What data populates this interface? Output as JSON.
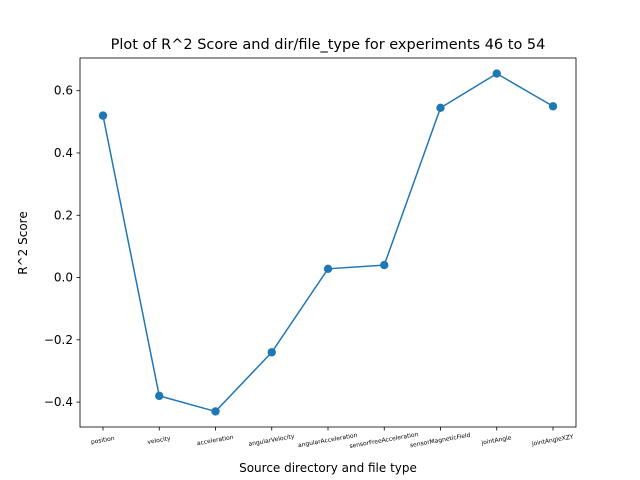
{
  "chart_data": {
    "type": "line",
    "title": "Plot of R^2 Score and dir/file_type for experiments 46 to 54",
    "xlabel": "Source directory and file type",
    "ylabel": "R^2 Score",
    "categories": [
      "position",
      "velocity",
      "acceleration",
      "angularVelocity",
      "angularAcceleration",
      "sensorFreeAcceleration",
      "sensorMagneticField",
      "jointAngle",
      "jointAngleXZY"
    ],
    "values": [
      0.52,
      -0.38,
      -0.43,
      -0.24,
      0.028,
      0.04,
      0.545,
      0.655,
      0.55
    ],
    "ylim": [
      -0.48,
      0.705
    ],
    "yticks": [
      -0.4,
      -0.2,
      0.0,
      0.2,
      0.4,
      0.6
    ],
    "ytick_labels": [
      "−0.4",
      "−0.2",
      "0.0",
      "0.2",
      "0.4",
      "0.6"
    ],
    "grid": false,
    "markers": true,
    "line_color": "#1f77b4"
  }
}
